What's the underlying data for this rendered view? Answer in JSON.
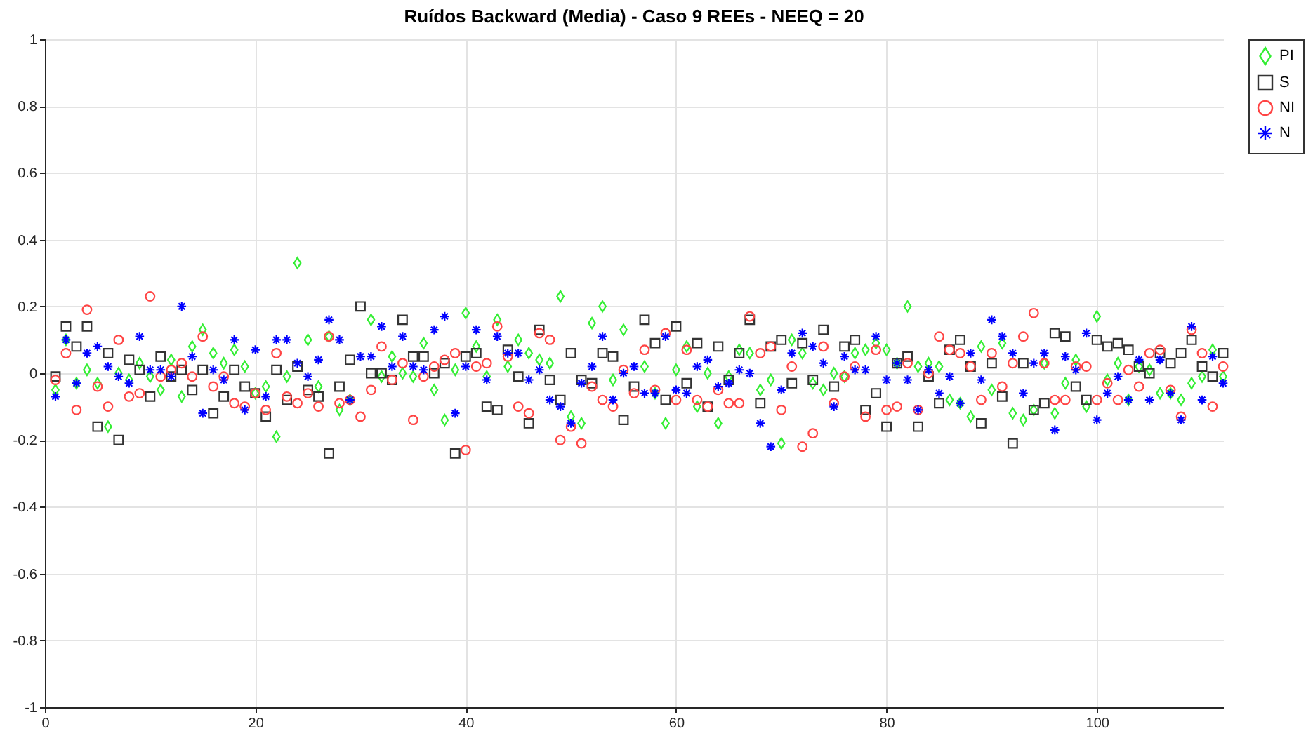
{
  "chart_data": {
    "type": "scatter",
    "title": "Ruídos Backward (Media) - Caso 9 REEs - NEEQ = 20",
    "x": [
      1,
      2,
      3,
      4,
      5,
      6,
      7,
      8,
      9,
      10,
      11,
      12,
      13,
      14,
      15,
      16,
      17,
      18,
      19,
      20,
      21,
      22,
      23,
      24,
      25,
      26,
      27,
      28,
      29,
      30,
      31,
      32,
      33,
      34,
      35,
      36,
      37,
      38,
      39,
      40,
      41,
      42,
      43,
      44,
      45,
      46,
      47,
      48,
      49,
      50,
      51,
      52,
      53,
      54,
      55,
      56,
      57,
      58,
      59,
      60,
      61,
      62,
      63,
      64,
      65,
      66,
      67,
      68,
      69,
      70,
      71,
      72,
      73,
      74,
      75,
      76,
      77,
      78,
      79,
      80,
      81,
      82,
      83,
      84,
      85,
      86,
      87,
      88,
      89,
      90,
      91,
      92,
      93,
      94,
      95,
      96,
      97,
      98,
      99,
      100,
      101,
      102,
      103,
      104,
      105,
      106,
      107,
      108,
      109,
      110,
      111,
      112
    ],
    "xlim": [
      0,
      112
    ],
    "xticks": [
      0,
      20,
      40,
      60,
      80,
      100
    ],
    "ylim": [
      -1,
      1
    ],
    "yticks": [
      -1,
      -0.8,
      -0.6,
      -0.4,
      -0.2,
      0,
      0.2,
      0.4,
      0.6,
      0.8,
      1
    ],
    "grid": true,
    "legend": "right",
    "series": [
      {
        "name": "PI",
        "color": "#33ee33",
        "marker": "diamond",
        "values": [
          -0.05,
          0.1,
          -0.03,
          0.01,
          -0.03,
          -0.16,
          0,
          -0.02,
          0.03,
          -0.01,
          -0.05,
          0.04,
          -0.07,
          0.08,
          0.13,
          0.06,
          0.03,
          0.07,
          0.02,
          -0.06,
          -0.04,
          -0.19,
          -0.01,
          0.33,
          0.1,
          -0.04,
          0.11,
          -0.11,
          -0.08,
          null,
          0.16,
          -0.01,
          0.05,
          0,
          -0.01,
          0.09,
          -0.05,
          -0.14,
          0.01,
          0.18,
          0.08,
          -0.01,
          0.16,
          0.02,
          0.1,
          0.06,
          0.04,
          0.03,
          0.23,
          -0.13,
          -0.15,
          0.15,
          0.2,
          -0.02,
          0.13,
          null,
          0.02,
          -0.06,
          -0.15,
          0.01,
          0.08,
          -0.1,
          0,
          -0.15,
          -0.01,
          0.07,
          0.06,
          -0.05,
          -0.02,
          -0.21,
          0.1,
          0.06,
          -0.03,
          -0.05,
          0,
          -0.01,
          0.06,
          0.07,
          0.09,
          0.07,
          0.03,
          0.2,
          0.02,
          0.03,
          0.02,
          -0.08,
          -0.09,
          -0.13,
          0.08,
          -0.05,
          0.09,
          -0.12,
          -0.14,
          -0.11,
          0.03,
          -0.12,
          -0.03,
          0.04,
          -0.1,
          0.17,
          -0.02,
          0.03,
          -0.08,
          0.02,
          0.01,
          -0.06,
          -0.06,
          -0.08,
          -0.03,
          -0.01,
          0.07,
          -0.01
        ]
      },
      {
        "name": "S",
        "color": "#333333",
        "marker": "square",
        "values": [
          -0.01,
          0.14,
          0.08,
          0.14,
          -0.16,
          0.06,
          -0.2,
          0.04,
          0.01,
          -0.07,
          0.05,
          -0.01,
          0.01,
          -0.05,
          0.01,
          -0.12,
          -0.07,
          0.01,
          -0.04,
          -0.06,
          -0.13,
          0.01,
          -0.08,
          0.02,
          -0.05,
          -0.07,
          -0.24,
          -0.04,
          0.04,
          0.2,
          0,
          0,
          -0.02,
          0.16,
          0.05,
          0.05,
          0,
          0.03,
          -0.24,
          0.05,
          0.06,
          -0.1,
          -0.11,
          0.07,
          -0.01,
          -0.15,
          0.13,
          -0.02,
          -0.08,
          0.06,
          -0.02,
          -0.03,
          0.06,
          0.05,
          -0.14,
          -0.04,
          0.16,
          0.09,
          -0.08,
          0.14,
          -0.03,
          0.09,
          -0.1,
          0.08,
          -0.02,
          0.06,
          0.16,
          -0.09,
          0.08,
          0.1,
          -0.03,
          0.09,
          -0.02,
          0.13,
          -0.04,
          0.08,
          0.1,
          -0.11,
          -0.06,
          -0.16,
          0.03,
          0.05,
          -0.16,
          -0.01,
          -0.09,
          0.07,
          0.1,
          0.02,
          -0.15,
          0.03,
          -0.07,
          -0.21,
          0.03,
          -0.11,
          -0.09,
          0.12,
          0.11,
          -0.04,
          -0.08,
          0.1,
          0.08,
          0.09,
          0.07,
          0.02,
          0,
          0.06,
          0.03,
          0.06,
          0.1,
          0.02,
          -0.01,
          0.06
        ]
      },
      {
        "name": "NI",
        "color": "#ff4444",
        "marker": "circle",
        "values": [
          -0.02,
          0.06,
          -0.11,
          0.19,
          -0.04,
          -0.1,
          0.1,
          -0.07,
          -0.06,
          0.23,
          -0.01,
          0.01,
          0.03,
          -0.01,
          0.11,
          -0.04,
          -0.01,
          -0.09,
          -0.1,
          -0.06,
          -0.11,
          0.06,
          -0.07,
          -0.09,
          -0.06,
          -0.1,
          0.11,
          -0.09,
          -0.08,
          -0.13,
          -0.05,
          0.08,
          -0.02,
          0.03,
          -0.14,
          -0.01,
          0.02,
          0.04,
          0.06,
          -0.23,
          0.02,
          0.03,
          0.14,
          0.05,
          -0.1,
          -0.12,
          0.12,
          0.1,
          -0.2,
          -0.16,
          -0.21,
          -0.04,
          -0.08,
          -0.1,
          0.01,
          -0.06,
          0.07,
          -0.05,
          0.12,
          -0.08,
          0.07,
          -0.08,
          -0.1,
          -0.05,
          -0.09,
          -0.09,
          0.17,
          0.06,
          0.08,
          -0.11,
          0.02,
          -0.22,
          -0.18,
          0.08,
          -0.09,
          -0.01,
          0.02,
          -0.13,
          0.07,
          -0.11,
          -0.1,
          0.03,
          -0.11,
          0,
          0.11,
          0.07,
          0.06,
          0.02,
          -0.08,
          0.06,
          -0.04,
          0.03,
          0.11,
          0.18,
          0.03,
          -0.08,
          -0.08,
          0.02,
          0.02,
          -0.08,
          -0.03,
          -0.08,
          0.01,
          -0.04,
          0.06,
          0.07,
          -0.05,
          -0.13,
          0.13,
          0.06,
          -0.1,
          0.02
        ]
      },
      {
        "name": "N",
        "color": "#0000ff",
        "marker": "cross",
        "values": [
          -0.07,
          0.1,
          -0.03,
          0.06,
          0.08,
          0.02,
          -0.01,
          -0.03,
          0.11,
          0.01,
          0.01,
          -0.01,
          0.2,
          0.05,
          -0.12,
          0.01,
          -0.02,
          0.1,
          -0.11,
          0.07,
          -0.07,
          0.1,
          0.1,
          0.03,
          -0.01,
          0.04,
          0.16,
          0.1,
          -0.08,
          0.05,
          0.05,
          0.14,
          0.02,
          0.11,
          0.02,
          0.01,
          0.13,
          0.17,
          -0.12,
          0.02,
          0.13,
          -0.02,
          0.11,
          0.06,
          0.06,
          -0.02,
          0.01,
          -0.08,
          -0.1,
          -0.15,
          -0.03,
          0.02,
          0.11,
          -0.08,
          0,
          0.02,
          -0.06,
          -0.06,
          0.11,
          -0.05,
          -0.06,
          0.02,
          0.04,
          -0.04,
          -0.03,
          0.01,
          0,
          -0.15,
          -0.22,
          -0.05,
          0.06,
          0.12,
          0.08,
          0.03,
          -0.1,
          0.05,
          0.01,
          0.01,
          0.11,
          -0.02,
          0.03,
          -0.02,
          -0.11,
          0.01,
          -0.06,
          -0.01,
          -0.09,
          0.06,
          -0.02,
          0.16,
          0.11,
          0.06,
          -0.06,
          0.03,
          0.06,
          -0.17,
          0.05,
          0.01,
          0.12,
          -0.14,
          -0.06,
          -0.01,
          -0.08,
          0.04,
          -0.08,
          0.04,
          -0.06,
          -0.14,
          0.14,
          -0.08,
          0.05,
          -0.03
        ]
      }
    ]
  }
}
